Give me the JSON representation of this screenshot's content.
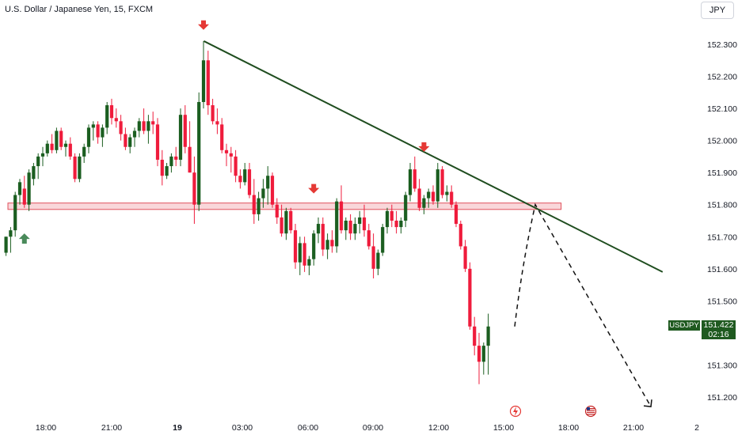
{
  "header": {
    "title": "U.S. Dollar / Japanese Yen, 15, FXCM",
    "currency_button": "JPY"
  },
  "price_label": {
    "symbol": "USDJPY",
    "price": "151.422",
    "countdown": "02:16"
  },
  "colors": {
    "up": "#1b5e20",
    "down": "#ef1c3c",
    "trendline": "#1f4d1f",
    "zone_fill": "#f7c9cd",
    "zone_border": "#e0505c",
    "arrow_down": "#e53935",
    "arrow_up": "#4a8a5a"
  },
  "chart_data": {
    "type": "candlestick",
    "symbol": "USDJPY",
    "interval": "15",
    "ylim": [
      151.15,
      152.38
    ],
    "y_ticks": [
      "152.300",
      "152.200",
      "152.100",
      "152.000",
      "151.900",
      "151.800",
      "151.700",
      "151.600",
      "151.500",
      "151.300",
      "151.200"
    ],
    "x_ticks": [
      "18:00",
      "21:00",
      "19",
      "03:00",
      "06:00",
      "09:00",
      "12:00",
      "15:00",
      "18:00",
      "21:00",
      "2"
    ],
    "candles": [
      [
        151.65,
        151.7,
        151.64,
        151.7
      ],
      [
        151.7,
        151.73,
        151.65,
        151.72
      ],
      [
        151.72,
        151.84,
        151.7,
        151.83
      ],
      [
        151.83,
        151.88,
        151.8,
        151.87
      ],
      [
        151.85,
        151.89,
        151.79,
        151.8
      ],
      [
        151.8,
        151.91,
        151.78,
        151.9
      ],
      [
        151.88,
        151.93,
        151.86,
        151.92
      ],
      [
        151.92,
        151.96,
        151.88,
        151.95
      ],
      [
        151.95,
        151.98,
        151.92,
        151.96
      ],
      [
        151.96,
        152.0,
        151.95,
        151.99
      ],
      [
        151.99,
        152.02,
        151.96,
        151.97
      ],
      [
        151.97,
        152.04,
        151.96,
        152.03
      ],
      [
        152.03,
        152.04,
        151.97,
        151.98
      ],
      [
        151.98,
        152.0,
        151.95,
        151.99
      ],
      [
        151.99,
        152.01,
        151.94,
        151.95
      ],
      [
        151.95,
        151.96,
        151.87,
        151.88
      ],
      [
        151.88,
        151.96,
        151.87,
        151.95
      ],
      [
        151.95,
        151.99,
        151.93,
        151.98
      ],
      [
        151.98,
        152.05,
        151.96,
        152.04
      ],
      [
        152.04,
        152.06,
        152.0,
        152.05
      ],
      [
        152.05,
        152.06,
        151.99,
        152.01
      ],
      [
        152.01,
        152.05,
        151.98,
        152.04
      ],
      [
        152.04,
        152.12,
        152.02,
        152.11
      ],
      [
        152.11,
        152.13,
        152.05,
        152.07
      ],
      [
        152.07,
        152.1,
        152.04,
        152.06
      ],
      [
        152.06,
        152.08,
        152.0,
        152.02
      ],
      [
        152.02,
        152.04,
        151.97,
        151.98
      ],
      [
        151.98,
        152.02,
        151.96,
        152.01
      ],
      [
        152.01,
        152.04,
        151.98,
        152.03
      ],
      [
        152.03,
        152.07,
        152.01,
        152.06
      ],
      [
        152.06,
        152.1,
        152.02,
        152.03
      ],
      [
        152.03,
        152.08,
        151.99,
        152.06
      ],
      [
        152.06,
        152.09,
        152.02,
        152.05
      ],
      [
        152.05,
        152.07,
        151.92,
        151.94
      ],
      [
        151.94,
        151.97,
        151.86,
        151.89
      ],
      [
        151.89,
        151.93,
        151.88,
        151.92
      ],
      [
        151.92,
        151.96,
        151.9,
        151.95
      ],
      [
        151.95,
        151.98,
        151.92,
        151.94
      ],
      [
        151.94,
        152.1,
        151.92,
        152.08
      ],
      [
        152.08,
        152.11,
        151.96,
        151.98
      ],
      [
        151.98,
        152.06,
        151.9,
        151.9
      ],
      [
        151.9,
        151.95,
        151.74,
        151.8
      ],
      [
        151.8,
        152.15,
        151.78,
        152.12
      ],
      [
        152.12,
        152.31,
        152.1,
        152.25
      ],
      [
        152.25,
        152.28,
        152.08,
        152.11
      ],
      [
        152.11,
        152.13,
        152.05,
        152.06
      ],
      [
        152.06,
        152.1,
        152.02,
        152.05
      ],
      [
        152.05,
        152.07,
        151.96,
        151.97
      ],
      [
        151.97,
        151.99,
        151.92,
        151.96
      ],
      [
        151.96,
        151.98,
        151.9,
        151.95
      ],
      [
        151.95,
        151.97,
        151.87,
        151.89
      ],
      [
        151.89,
        151.91,
        151.85,
        151.87
      ],
      [
        151.87,
        151.93,
        151.86,
        151.91
      ],
      [
        151.91,
        151.93,
        151.82,
        151.83
      ],
      [
        151.83,
        151.88,
        151.74,
        151.77
      ],
      [
        151.77,
        151.84,
        151.75,
        151.82
      ],
      [
        151.82,
        151.88,
        151.79,
        151.85
      ],
      [
        151.85,
        151.92,
        151.8,
        151.89
      ],
      [
        151.89,
        151.9,
        151.79,
        151.8
      ],
      [
        151.8,
        151.82,
        151.74,
        151.76
      ],
      [
        151.76,
        151.8,
        151.7,
        151.71
      ],
      [
        151.71,
        151.79,
        151.69,
        151.78
      ],
      [
        151.78,
        151.79,
        151.71,
        151.72
      ],
      [
        151.72,
        151.74,
        151.6,
        151.62
      ],
      [
        151.62,
        151.7,
        151.58,
        151.68
      ],
      [
        151.68,
        151.7,
        151.59,
        151.61
      ],
      [
        151.61,
        151.64,
        151.58,
        151.63
      ],
      [
        151.63,
        151.72,
        151.61,
        151.71
      ],
      [
        151.71,
        151.76,
        151.68,
        151.74
      ],
      [
        151.74,
        151.76,
        151.64,
        151.66
      ],
      [
        151.66,
        151.71,
        151.63,
        151.69
      ],
      [
        151.69,
        151.72,
        151.65,
        151.67
      ],
      [
        151.67,
        151.82,
        151.65,
        151.81
      ],
      [
        151.81,
        151.86,
        151.71,
        151.72
      ],
      [
        151.72,
        151.76,
        151.69,
        151.75
      ],
      [
        151.75,
        151.77,
        151.69,
        151.71
      ],
      [
        151.71,
        151.76,
        151.69,
        151.74
      ],
      [
        151.74,
        151.78,
        151.71,
        151.76
      ],
      [
        151.76,
        151.8,
        151.7,
        151.72
      ],
      [
        151.72,
        151.74,
        151.66,
        151.67
      ],
      [
        151.67,
        151.71,
        151.57,
        151.6
      ],
      [
        151.6,
        151.66,
        151.58,
        151.65
      ],
      [
        151.65,
        151.74,
        151.64,
        151.73
      ],
      [
        151.73,
        151.79,
        151.71,
        151.78
      ],
      [
        151.78,
        151.8,
        151.73,
        151.75
      ],
      [
        151.75,
        151.78,
        151.71,
        151.73
      ],
      [
        151.73,
        151.76,
        151.71,
        151.75
      ],
      [
        151.75,
        151.84,
        151.73,
        151.83
      ],
      [
        151.83,
        151.93,
        151.81,
        151.91
      ],
      [
        151.91,
        151.95,
        151.84,
        151.85
      ],
      [
        151.85,
        151.88,
        151.78,
        151.79
      ],
      [
        151.79,
        151.83,
        151.77,
        151.82
      ],
      [
        151.82,
        151.85,
        151.79,
        151.84
      ],
      [
        151.84,
        151.86,
        151.8,
        151.81
      ],
      [
        151.81,
        151.93,
        151.79,
        151.91
      ],
      [
        151.91,
        151.92,
        151.82,
        151.83
      ],
      [
        151.83,
        151.86,
        151.81,
        151.84
      ],
      [
        151.84,
        151.86,
        151.79,
        151.8
      ],
      [
        151.8,
        151.81,
        151.73,
        151.74
      ],
      [
        151.74,
        151.75,
        151.66,
        151.67
      ],
      [
        151.67,
        151.69,
        151.59,
        151.6
      ],
      [
        151.6,
        151.62,
        151.41,
        151.42
      ],
      [
        151.42,
        151.45,
        151.33,
        151.36
      ],
      [
        151.36,
        151.4,
        151.24,
        151.31
      ],
      [
        151.31,
        151.37,
        151.27,
        151.36
      ],
      [
        151.36,
        151.46,
        151.27,
        151.42
      ]
    ],
    "trendline": {
      "from": {
        "index": 43,
        "price": 152.31
      },
      "to": {
        "index": 131,
        "price": 151.59
      }
    },
    "zone": {
      "from_index": 0,
      "to_index": 117,
      "top": 151.805,
      "bottom": 151.785
    },
    "projection": [
      {
        "index": 105,
        "price": 151.42
      },
      {
        "index": 108,
        "price": 151.6
      },
      {
        "index": 112,
        "price": 151.8
      },
      {
        "index": 117,
        "price": 151.62
      },
      {
        "index": 124,
        "price": 151.4
      },
      {
        "index": 131,
        "price": 151.17
      }
    ],
    "markers": [
      {
        "type": "down",
        "index": 43,
        "price": 152.34
      },
      {
        "type": "down",
        "index": 67,
        "price": 151.83
      },
      {
        "type": "down",
        "index": 91,
        "price": 151.96
      },
      {
        "type": "up",
        "index": 4,
        "price": 151.73
      }
    ]
  }
}
